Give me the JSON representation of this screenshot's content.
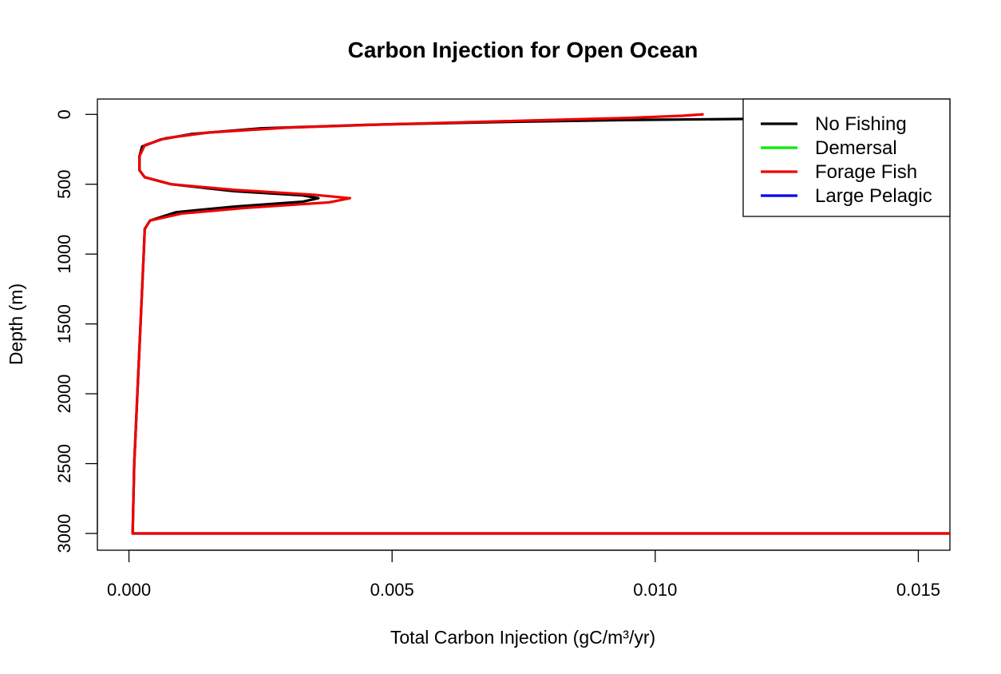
{
  "chart_data": {
    "type": "line",
    "title": "Carbon Injection for Open Ocean",
    "xlabel": "Total Carbon Injection (gC/m³/yr)",
    "ylabel": "Depth (m)",
    "xlim": [
      -0.0006,
      0.0156
    ],
    "ylim": [
      3120,
      -110
    ],
    "y_reversed": true,
    "x_ticks": [
      0.0,
      0.005,
      0.01,
      0.015
    ],
    "x_tick_labels": [
      "0.000",
      "0.005",
      "0.010",
      "0.015"
    ],
    "y_ticks": [
      0,
      500,
      1000,
      1500,
      2000,
      2500,
      3000
    ],
    "y_tick_labels": [
      "0",
      "500",
      "1000",
      "1500",
      "2000",
      "2500",
      "3000"
    ],
    "grid": false,
    "legend_position": "top-right",
    "series": [
      {
        "name": "No Fishing",
        "color": "#000000",
        "points": [
          [
            0.0125,
            30
          ],
          [
            0.0116,
            33
          ],
          [
            0.0095,
            40
          ],
          [
            0.007,
            55
          ],
          [
            0.0045,
            75
          ],
          [
            0.0025,
            100
          ],
          [
            0.0012,
            140
          ],
          [
            0.0006,
            180
          ],
          [
            0.00025,
            230
          ],
          [
            0.0002,
            300
          ],
          [
            0.0002,
            400
          ],
          [
            0.0003,
            450
          ],
          [
            0.0008,
            500
          ],
          [
            0.002,
            550
          ],
          [
            0.0033,
            580
          ],
          [
            0.0036,
            600
          ],
          [
            0.0033,
            625
          ],
          [
            0.002,
            660
          ],
          [
            0.0009,
            700
          ],
          [
            0.0004,
            760
          ],
          [
            0.0003,
            820
          ],
          [
            0.00028,
            1000
          ],
          [
            0.00022,
            1500
          ],
          [
            0.00016,
            2000
          ],
          [
            0.0001,
            2500
          ],
          [
            7e-05,
            3000
          ],
          [
            0.0156,
            3000
          ]
        ]
      },
      {
        "name": "Demersal",
        "color": "#00ee00",
        "points": []
      },
      {
        "name": "Forage Fish",
        "color": "#ee0000",
        "points": [
          [
            0.0109,
            0
          ],
          [
            0.0105,
            10
          ],
          [
            0.0095,
            25
          ],
          [
            0.0075,
            45
          ],
          [
            0.005,
            70
          ],
          [
            0.003,
            95
          ],
          [
            0.0015,
            130
          ],
          [
            0.0007,
            170
          ],
          [
            0.0003,
            220
          ],
          [
            0.0002,
            300
          ],
          [
            0.0002,
            400
          ],
          [
            0.0003,
            450
          ],
          [
            0.0008,
            500
          ],
          [
            0.002,
            540
          ],
          [
            0.0035,
            575
          ],
          [
            0.0042,
            600
          ],
          [
            0.0038,
            630
          ],
          [
            0.0022,
            670
          ],
          [
            0.001,
            710
          ],
          [
            0.0004,
            760
          ],
          [
            0.0003,
            820
          ],
          [
            0.00028,
            1000
          ],
          [
            0.00022,
            1500
          ],
          [
            0.00016,
            2000
          ],
          [
            0.0001,
            2500
          ],
          [
            7e-05,
            3000
          ],
          [
            0.0156,
            3000
          ]
        ]
      },
      {
        "name": "Large Pelagic",
        "color": "#0000ee",
        "points": []
      }
    ]
  }
}
